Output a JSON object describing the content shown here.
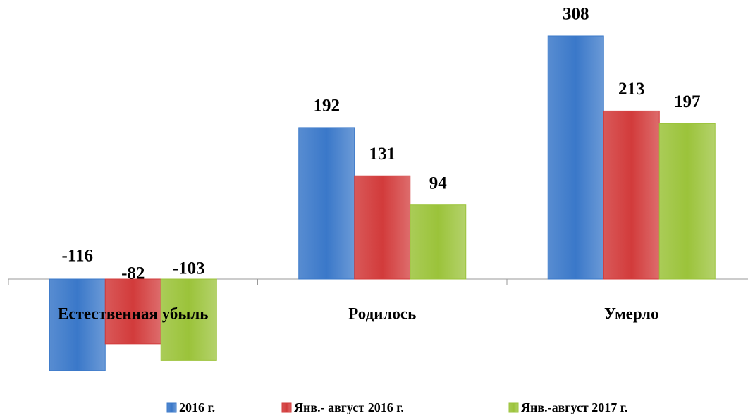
{
  "chart_data": {
    "type": "bar",
    "categories": [
      "Естественная убыль",
      "Родилось",
      "Умерло"
    ],
    "series": [
      {
        "name": "2016 г.",
        "color": "#3a78c9",
        "values": [
          -116,
          192,
          308
        ]
      },
      {
        "name": "Янв.- август 2016 г.",
        "color": "#d23b3b",
        "values": [
          -82,
          131,
          213
        ]
      },
      {
        "name": "Янв.-август 2017 г.",
        "color": "#9bc33a",
        "values": [
          -103,
          94,
          197
        ]
      }
    ]
  }
}
